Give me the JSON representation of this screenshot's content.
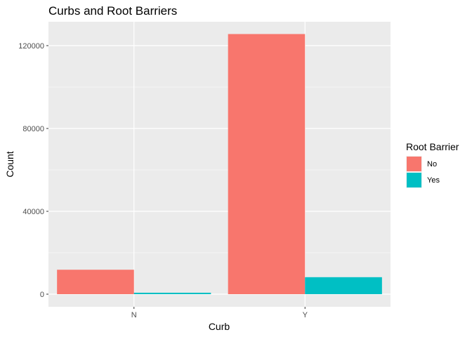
{
  "chart_data": {
    "type": "bar",
    "title": "Curbs and Root Barriers",
    "xlabel": "Curb",
    "ylabel": "Count",
    "categories": [
      "N",
      "Y"
    ],
    "series": [
      {
        "name": "No",
        "values": [
          11800,
          125600
        ],
        "color": "#F8766D"
      },
      {
        "name": "Yes",
        "values": [
          700,
          8200
        ],
        "color": "#00BFC4"
      }
    ],
    "ylim": [
      0,
      130000
    ],
    "yticks": [
      0,
      40000,
      80000,
      120000
    ],
    "ytick_labels": [
      "0",
      "40000",
      "80000",
      "120000"
    ],
    "legend": {
      "title": "Root Barrier",
      "placement": "right"
    },
    "grid": true,
    "panel_background": "#EBEBEB",
    "grid_color": "#FFFFFF"
  }
}
